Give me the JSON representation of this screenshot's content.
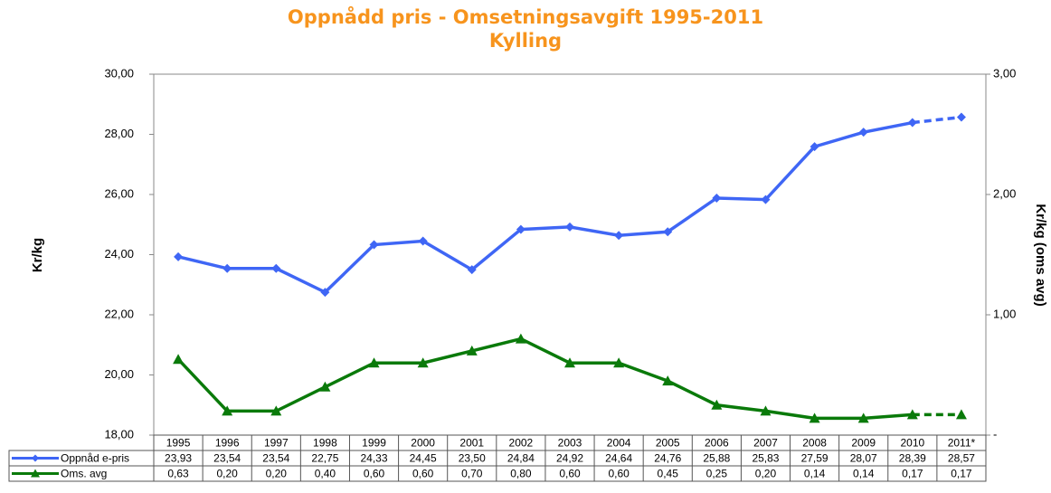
{
  "chart_data": {
    "type": "line",
    "title": "Oppnådd pris - Omsetningsavgift  1995-2011",
    "subtitle": "Kylling",
    "ylabel": "Kr/kg",
    "y2label": "Kr/kg (oms avg)",
    "categories": [
      "1995",
      "1996",
      "1997",
      "1998",
      "1999",
      "2000",
      "2001",
      "2002",
      "2003",
      "2004",
      "2005",
      "2006",
      "2007",
      "2008",
      "2009",
      "2010",
      "2011*"
    ],
    "ylim": [
      18,
      30
    ],
    "yticks": [
      {
        "value": 18,
        "label": "18,00"
      },
      {
        "value": 20,
        "label": "20,00"
      },
      {
        "value": 22,
        "label": "22,00"
      },
      {
        "value": 24,
        "label": "24,00"
      },
      {
        "value": 26,
        "label": "26,00"
      },
      {
        "value": 28,
        "label": "28,00"
      },
      {
        "value": 30,
        "label": "30,00"
      }
    ],
    "y2lim": [
      0,
      3
    ],
    "y2ticks": [
      {
        "value": 0,
        "label": "-"
      },
      {
        "value": 1,
        "label": "1,00"
      },
      {
        "value": 2,
        "label": "2,00"
      },
      {
        "value": 3,
        "label": "3,00"
      }
    ],
    "series": [
      {
        "name": "Oppnåd e-pris",
        "color": "#3f66f5",
        "marker": "diamond",
        "values": [
          23.93,
          23.54,
          23.54,
          22.75,
          24.33,
          24.45,
          23.5,
          24.84,
          24.92,
          24.64,
          24.76,
          25.88,
          25.83,
          27.59,
          28.07,
          28.39,
          28.57
        ],
        "value_labels": [
          "23,93",
          "23,54",
          "23,54",
          "22,75",
          "24,33",
          "24,45",
          "23,50",
          "24,84",
          "24,92",
          "24,64",
          "24,76",
          "25,88",
          "25,83",
          "27,59",
          "28,07",
          "28,39",
          "28,57"
        ]
      },
      {
        "name": "Oms. avg",
        "color": "#0a7a0a",
        "marker": "triangle",
        "axis": "y2",
        "values": [
          0.63,
          0.2,
          0.2,
          0.4,
          0.6,
          0.6,
          0.7,
          0.8,
          0.6,
          0.6,
          0.45,
          0.25,
          0.2,
          0.14,
          0.14,
          0.17,
          0.17
        ],
        "value_labels": [
          "0,63",
          "0,20",
          "0,20",
          "0,40",
          "0,60",
          "0,60",
          "0,70",
          "0,80",
          "0,60",
          "0,60",
          "0,45",
          "0,25",
          "0,20",
          "0,14",
          "0,14",
          "0,17",
          "0,17"
        ]
      }
    ]
  }
}
